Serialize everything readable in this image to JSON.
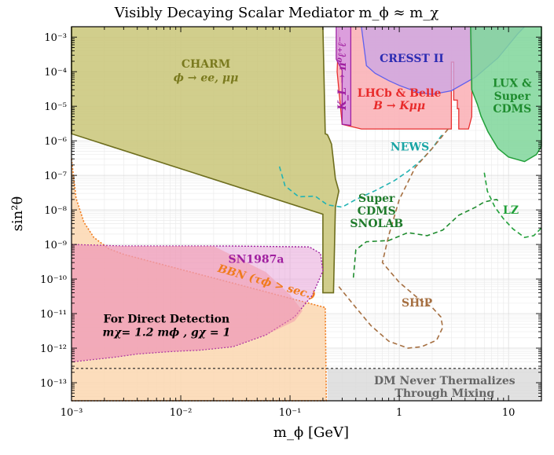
{
  "chart_data": {
    "type": "area",
    "title": "Visibly Decaying Scalar Mediator  m_ϕ ≈  m_χ",
    "xlabel": "m_ϕ [GeV]",
    "ylabel": "sin²θ",
    "x_scale": "log",
    "y_scale": "log",
    "xlim": [
      0.001,
      20
    ],
    "ylim": [
      3e-14,
      0.002
    ],
    "grid": true,
    "x_ticks": [
      {
        "value": 0.001,
        "label": "10⁻³"
      },
      {
        "value": 0.01,
        "label": "10⁻²"
      },
      {
        "value": 0.1,
        "label": "10⁻¹"
      },
      {
        "value": 1,
        "label": "1"
      },
      {
        "value": 10,
        "label": "10"
      }
    ],
    "y_ticks": [
      {
        "value": 1e-13,
        "label": "10⁻¹³"
      },
      {
        "value": 1e-12,
        "label": "10⁻¹²"
      },
      {
        "value": 1e-11,
        "label": "10⁻¹¹"
      },
      {
        "value": 1e-10,
        "label": "10⁻¹⁰"
      },
      {
        "value": 1e-09,
        "label": "10⁻⁹"
      },
      {
        "value": 1e-08,
        "label": "10⁻⁸"
      },
      {
        "value": 1e-07,
        "label": "10⁻⁷"
      },
      {
        "value": 1e-06,
        "label": "10⁻⁶"
      },
      {
        "value": 1e-05,
        "label": "10⁻⁵"
      },
      {
        "value": 0.0001,
        "label": "10⁻⁴"
      },
      {
        "value": 0.001,
        "label": "10⁻³"
      }
    ],
    "regions": [
      {
        "name": "bbn",
        "fill": "#fbd7b0",
        "opacity": 0.85,
        "stroke": "#f07b1e",
        "dash": "2,2",
        "stroke_width": 1.6,
        "points": [
          [
            0.001,
            3e-07
          ],
          [
            0.0011,
            2.2e-08
          ],
          [
            0.0013,
            4.4e-09
          ],
          [
            0.0016,
            1.6e-09
          ],
          [
            0.0022,
            7.5e-10
          ],
          [
            0.003,
            5.2e-10
          ],
          [
            0.21,
            1.5e-11
          ],
          [
            0.215,
            3e-14
          ],
          [
            0.001,
            3e-14
          ]
        ]
      },
      {
        "name": "charm",
        "fill": "#c9c678",
        "opacity": 0.85,
        "stroke": "#6e6e1e",
        "dash": "",
        "stroke_width": 1.6,
        "points": [
          [
            0.001,
            0.002
          ],
          [
            0.001,
            1.6e-06
          ],
          [
            0.2,
            7.5e-09
          ],
          [
            0.2,
            4e-11
          ],
          [
            0.25,
            4e-11
          ],
          [
            0.26,
            1.2e-08
          ],
          [
            0.28,
            3.5e-08
          ],
          [
            0.26,
            8e-08
          ],
          [
            0.25,
            2.5e-07
          ],
          [
            0.24,
            8e-07
          ],
          [
            0.23,
            1.1e-06
          ],
          [
            0.22,
            1.5e-06
          ],
          [
            0.21,
            1.6e-06
          ],
          [
            0.2,
            0.002
          ]
        ]
      },
      {
        "name": "sn1987a",
        "fill": "#e59bd6",
        "opacity": 0.5,
        "stroke": "#a020a0",
        "dash": "2,2",
        "stroke_width": 1.4,
        "points": [
          [
            0.001,
            1e-09
          ],
          [
            0.003,
            9e-10
          ],
          [
            0.03,
            9e-10
          ],
          [
            0.15,
            8.5e-10
          ],
          [
            0.19,
            5.5e-10
          ],
          [
            0.2,
            1.7e-10
          ],
          [
            0.16,
            3.4e-11
          ],
          [
            0.11,
            8e-12
          ],
          [
            0.06,
            2.4e-12
          ],
          [
            0.03,
            1.1e-12
          ],
          [
            0.015,
            8.8e-13
          ],
          [
            0.008,
            8e-13
          ],
          [
            0.004,
            6.8e-13
          ],
          [
            0.0025,
            5.5e-13
          ],
          [
            0.001,
            4e-13
          ]
        ]
      },
      {
        "name": "direct-detection",
        "fill": "#f39aab",
        "opacity": 0.55,
        "stroke": "",
        "dash": "",
        "stroke_width": 0,
        "points": [
          [
            0.001,
            1e-09
          ],
          [
            0.003,
            9e-10
          ],
          [
            0.02,
            9e-10
          ],
          [
            0.06,
            1.6e-10
          ],
          [
            0.1,
            3.5e-11
          ],
          [
            0.13,
            1.2e-11
          ],
          [
            0.11,
            6e-12
          ],
          [
            0.06,
            2.4e-12
          ],
          [
            0.03,
            1.1e-12
          ],
          [
            0.015,
            8.8e-13
          ],
          [
            0.008,
            8e-13
          ],
          [
            0.004,
            6.8e-13
          ],
          [
            0.0025,
            5.5e-13
          ],
          [
            0.001,
            4e-13
          ]
        ]
      },
      {
        "name": "lhcb-belle",
        "fill": "#fbb3b8",
        "opacity": 0.9,
        "stroke": "#e83030",
        "dash": "",
        "stroke_width": 1.3,
        "points": [
          [
            0.28,
            0.002
          ],
          [
            0.27,
            0.0001
          ],
          [
            0.3,
            3e-06
          ],
          [
            0.45,
            2.2e-06
          ],
          [
            0.8,
            2.2e-06
          ],
          [
            3.0,
            2.2e-06
          ],
          [
            3.0,
            0.00019
          ],
          [
            3.15,
            0.00019
          ],
          [
            3.15,
            1.5e-05
          ],
          [
            3.4,
            1.5e-05
          ],
          [
            3.4,
            8.5e-06
          ],
          [
            3.5,
            8.5e-06
          ],
          [
            3.5,
            2.2e-06
          ],
          [
            4.3,
            2.2e-06
          ],
          [
            4.6,
            5e-06
          ],
          [
            4.65,
            0.0002
          ],
          [
            4.7,
            0.002
          ]
        ]
      },
      {
        "name": "kl",
        "fill": "#d89be0",
        "opacity": 0.9,
        "stroke": "#a020a0",
        "dash": "",
        "stroke_width": 1.3,
        "points": [
          [
            0.265,
            0.002
          ],
          [
            0.265,
            0.00023
          ],
          [
            0.3,
            0.00011
          ],
          [
            0.3,
            3e-06
          ],
          [
            0.36,
            2.8e-06
          ],
          [
            0.36,
            0.002
          ]
        ]
      },
      {
        "name": "cresst",
        "fill": "#c9a6e6",
        "opacity": 0.75,
        "stroke": "#6060ee",
        "dash": "",
        "stroke_width": 1.3,
        "points": [
          [
            0.45,
            0.002
          ],
          [
            0.5,
            0.00015
          ],
          [
            0.6,
            9e-05
          ],
          [
            0.8,
            5.5e-05
          ],
          [
            1.0,
            4e-05
          ],
          [
            1.5,
            2.5e-05
          ],
          [
            2.0,
            2.2e-05
          ],
          [
            3.0,
            2.8e-05
          ],
          [
            5.0,
            7e-05
          ],
          [
            8.0,
            0.00025
          ],
          [
            12.0,
            0.0012
          ],
          [
            14.0,
            0.002
          ]
        ]
      },
      {
        "name": "lux",
        "fill": "#7fd69a",
        "opacity": 0.85,
        "stroke": "#22a03a",
        "dash": "",
        "stroke_width": 1.5,
        "points": [
          [
            4.5,
            0.002
          ],
          [
            4.6,
            3e-05
          ],
          [
            4.9,
            1.8e-05
          ],
          [
            5.2,
            1.1e-05
          ],
          [
            5.6,
            5.2e-06
          ],
          [
            6.5,
            1.8e-06
          ],
          [
            8.0,
            6e-07
          ],
          [
            10.0,
            3.4e-07
          ],
          [
            14.0,
            2.5e-07
          ],
          [
            18.0,
            4e-07
          ],
          [
            20.0,
            7e-07
          ],
          [
            20.0,
            0.002
          ]
        ]
      },
      {
        "name": "dm-never",
        "fill": "#d9d9d9",
        "opacity": 0.8,
        "stroke": "",
        "dash": "",
        "stroke_width": 0,
        "points": [
          [
            0.22,
            2.6e-13
          ],
          [
            20,
            2.6e-13
          ],
          [
            20,
            3e-14
          ],
          [
            0.22,
            3e-14
          ]
        ]
      }
    ],
    "curves": [
      {
        "name": "news",
        "color": "#22b3b3",
        "dash": "6,4",
        "width": 1.6,
        "points": [
          [
            0.08,
            1.8e-07
          ],
          [
            0.09,
            5e-08
          ],
          [
            0.12,
            2.4e-08
          ],
          [
            0.17,
            2.5e-08
          ],
          [
            0.22,
            1.4e-08
          ],
          [
            0.3,
            1.2e-08
          ],
          [
            0.4,
            2e-08
          ],
          [
            0.6,
            3.6e-08
          ],
          [
            0.9,
            7e-08
          ],
          [
            1.2,
            1.3e-07
          ],
          [
            1.6,
            2.8e-07
          ],
          [
            2.0,
            6e-07
          ],
          [
            2.5,
            1.6e-06
          ]
        ]
      },
      {
        "name": "shiP",
        "color": "#a67042",
        "dash": "6,4",
        "width": 1.6,
        "points": [
          [
            2.8,
            2.2e-06
          ],
          [
            2.0,
            6e-07
          ],
          [
            1.4,
            1.7e-07
          ],
          [
            1.0,
            2e-08
          ],
          [
            0.8,
            1.8e-09
          ],
          [
            0.7,
            3e-10
          ],
          [
            1.0,
            8e-11
          ],
          [
            1.5,
            2.7e-11
          ],
          [
            2.0,
            1.5e-11
          ],
          [
            2.4,
            8e-12
          ],
          [
            2.5,
            4e-12
          ],
          [
            2.2,
            1.7e-12
          ],
          [
            1.6,
            1.1e-12
          ],
          [
            1.2,
            1e-12
          ],
          [
            0.8,
            1.6e-12
          ],
          [
            0.55,
            4.5e-12
          ],
          [
            0.4,
            1.5e-11
          ],
          [
            0.28,
            6e-11
          ]
        ]
      },
      {
        "name": "supercdms-snolab",
        "color": "#1e8c2e",
        "dash": "6,4",
        "width": 1.6,
        "points": [
          [
            0.38,
            1.1e-10
          ],
          [
            0.4,
            7e-10
          ],
          [
            0.5,
            1.2e-09
          ],
          [
            0.8,
            1.3e-09
          ],
          [
            1.2,
            2.2e-09
          ],
          [
            1.8,
            1.8e-09
          ],
          [
            2.5,
            2.6e-09
          ],
          [
            3.5,
            7e-09
          ],
          [
            5.0,
            1.2e-08
          ],
          [
            6.0,
            1.7e-08
          ],
          [
            7.0,
            1.9e-08
          ],
          [
            7.8,
            2e-08
          ],
          [
            8.2,
            1.7e-08
          ]
        ]
      },
      {
        "name": "lz",
        "color": "#22a03a",
        "dash": "6,4",
        "width": 1.6,
        "points": [
          [
            6.0,
            1.2e-07
          ],
          [
            6.4,
            3.5e-08
          ],
          [
            7.5,
            1.2e-08
          ],
          [
            9.0,
            5.5e-09
          ],
          [
            11.0,
            2.8e-09
          ],
          [
            14.0,
            1.6e-09
          ],
          [
            17.0,
            1.8e-09
          ],
          [
            20.0,
            3e-09
          ]
        ]
      },
      {
        "name": "dm-never-line",
        "color": "#222222",
        "dash": "3,3",
        "width": 1.2,
        "points": [
          [
            0.001,
            2.6e-13
          ],
          [
            20,
            2.6e-13
          ]
        ]
      }
    ],
    "annotations": [
      {
        "name": "charm-label",
        "lines": [
          "CHARM",
          "ϕ → ee, μμ"
        ],
        "x": 0.017,
        "y": 0.00013,
        "color": "#7a7a1e",
        "italic_lines": [
          1
        ],
        "size": 15,
        "anchor": "middle"
      },
      {
        "name": "cresst-label",
        "lines": [
          "CRESST II"
        ],
        "x": 1.3,
        "y": 0.00019,
        "color": "#2b2bb3",
        "italic_lines": [],
        "size": 15,
        "anchor": "middle"
      },
      {
        "name": "lhcb-label",
        "lines": [
          "LHCb & Belle",
          "B → Kμμ"
        ],
        "x": 1.0,
        "y": 1.9e-05,
        "color": "#e82a2a",
        "italic_lines": [
          1
        ],
        "size": 14,
        "anchor": "middle"
      },
      {
        "name": "lux-label",
        "lines": [
          "LUX &",
          "Super",
          "CDMS"
        ],
        "x": 10.8,
        "y": 3.6e-05,
        "color": "#1e8c2e",
        "italic_lines": [],
        "size": 14,
        "anchor": "middle"
      },
      {
        "name": "news-label",
        "lines": [
          "NEWS"
        ],
        "x": 1.25,
        "y": 5.2e-07,
        "color": "#18a4a4",
        "italic_lines": [],
        "size": 14,
        "anchor": "middle"
      },
      {
        "name": "supercdms-label",
        "lines": [
          "Super",
          "CDMS",
          "SNOLAB"
        ],
        "x": 0.62,
        "y": 1.7e-08,
        "color": "#1e7a2a",
        "italic_lines": [],
        "size": 14,
        "anchor": "middle"
      },
      {
        "name": "lz-label",
        "lines": [
          "LZ"
        ],
        "x": 10.5,
        "y": 7.8e-09,
        "color": "#22a03a",
        "italic_lines": [],
        "size": 14,
        "anchor": "middle"
      },
      {
        "name": "sn1987a-label",
        "lines": [
          "SN1987a"
        ],
        "x": 0.049,
        "y": 2.9e-10,
        "color": "#a020a0",
        "italic_lines": [],
        "size": 14,
        "anchor": "middle"
      },
      {
        "name": "ship-label",
        "lines": [
          "SHiP"
        ],
        "x": 1.45,
        "y": 1.6e-11,
        "color": "#a67042",
        "italic_lines": [],
        "size": 14,
        "anchor": "middle"
      },
      {
        "name": "direct-detection-label",
        "lines": [
          "For Direct Detection",
          "mχ= 1.2 mϕ , gχ = 1"
        ],
        "x": 0.0074,
        "y": 5.5e-12,
        "color": "#000000",
        "italic_lines": [
          1
        ],
        "size": 15,
        "anchor": "middle"
      },
      {
        "name": "dm-never-label",
        "lines": [
          "DM Never Thermalizes",
          "Through Mixing"
        ],
        "x": 2.6,
        "y": 9e-14,
        "color": "#666666",
        "italic_lines": [],
        "size": 14,
        "anchor": "middle"
      }
    ],
    "rotated_labels": [
      {
        "name": "kl-label",
        "text": "K_L → π⁰ℓ⁺ℓ⁻",
        "x": 0.325,
        "y": 9e-05,
        "color": "#a020a0",
        "size": 13
      },
      {
        "name": "bbn-label",
        "text": "BBN (τϕ > sec.)",
        "x": 0.06,
        "y": 6.5e-11,
        "color": "#f07b1e",
        "size": 14,
        "angle": 16
      }
    ]
  }
}
